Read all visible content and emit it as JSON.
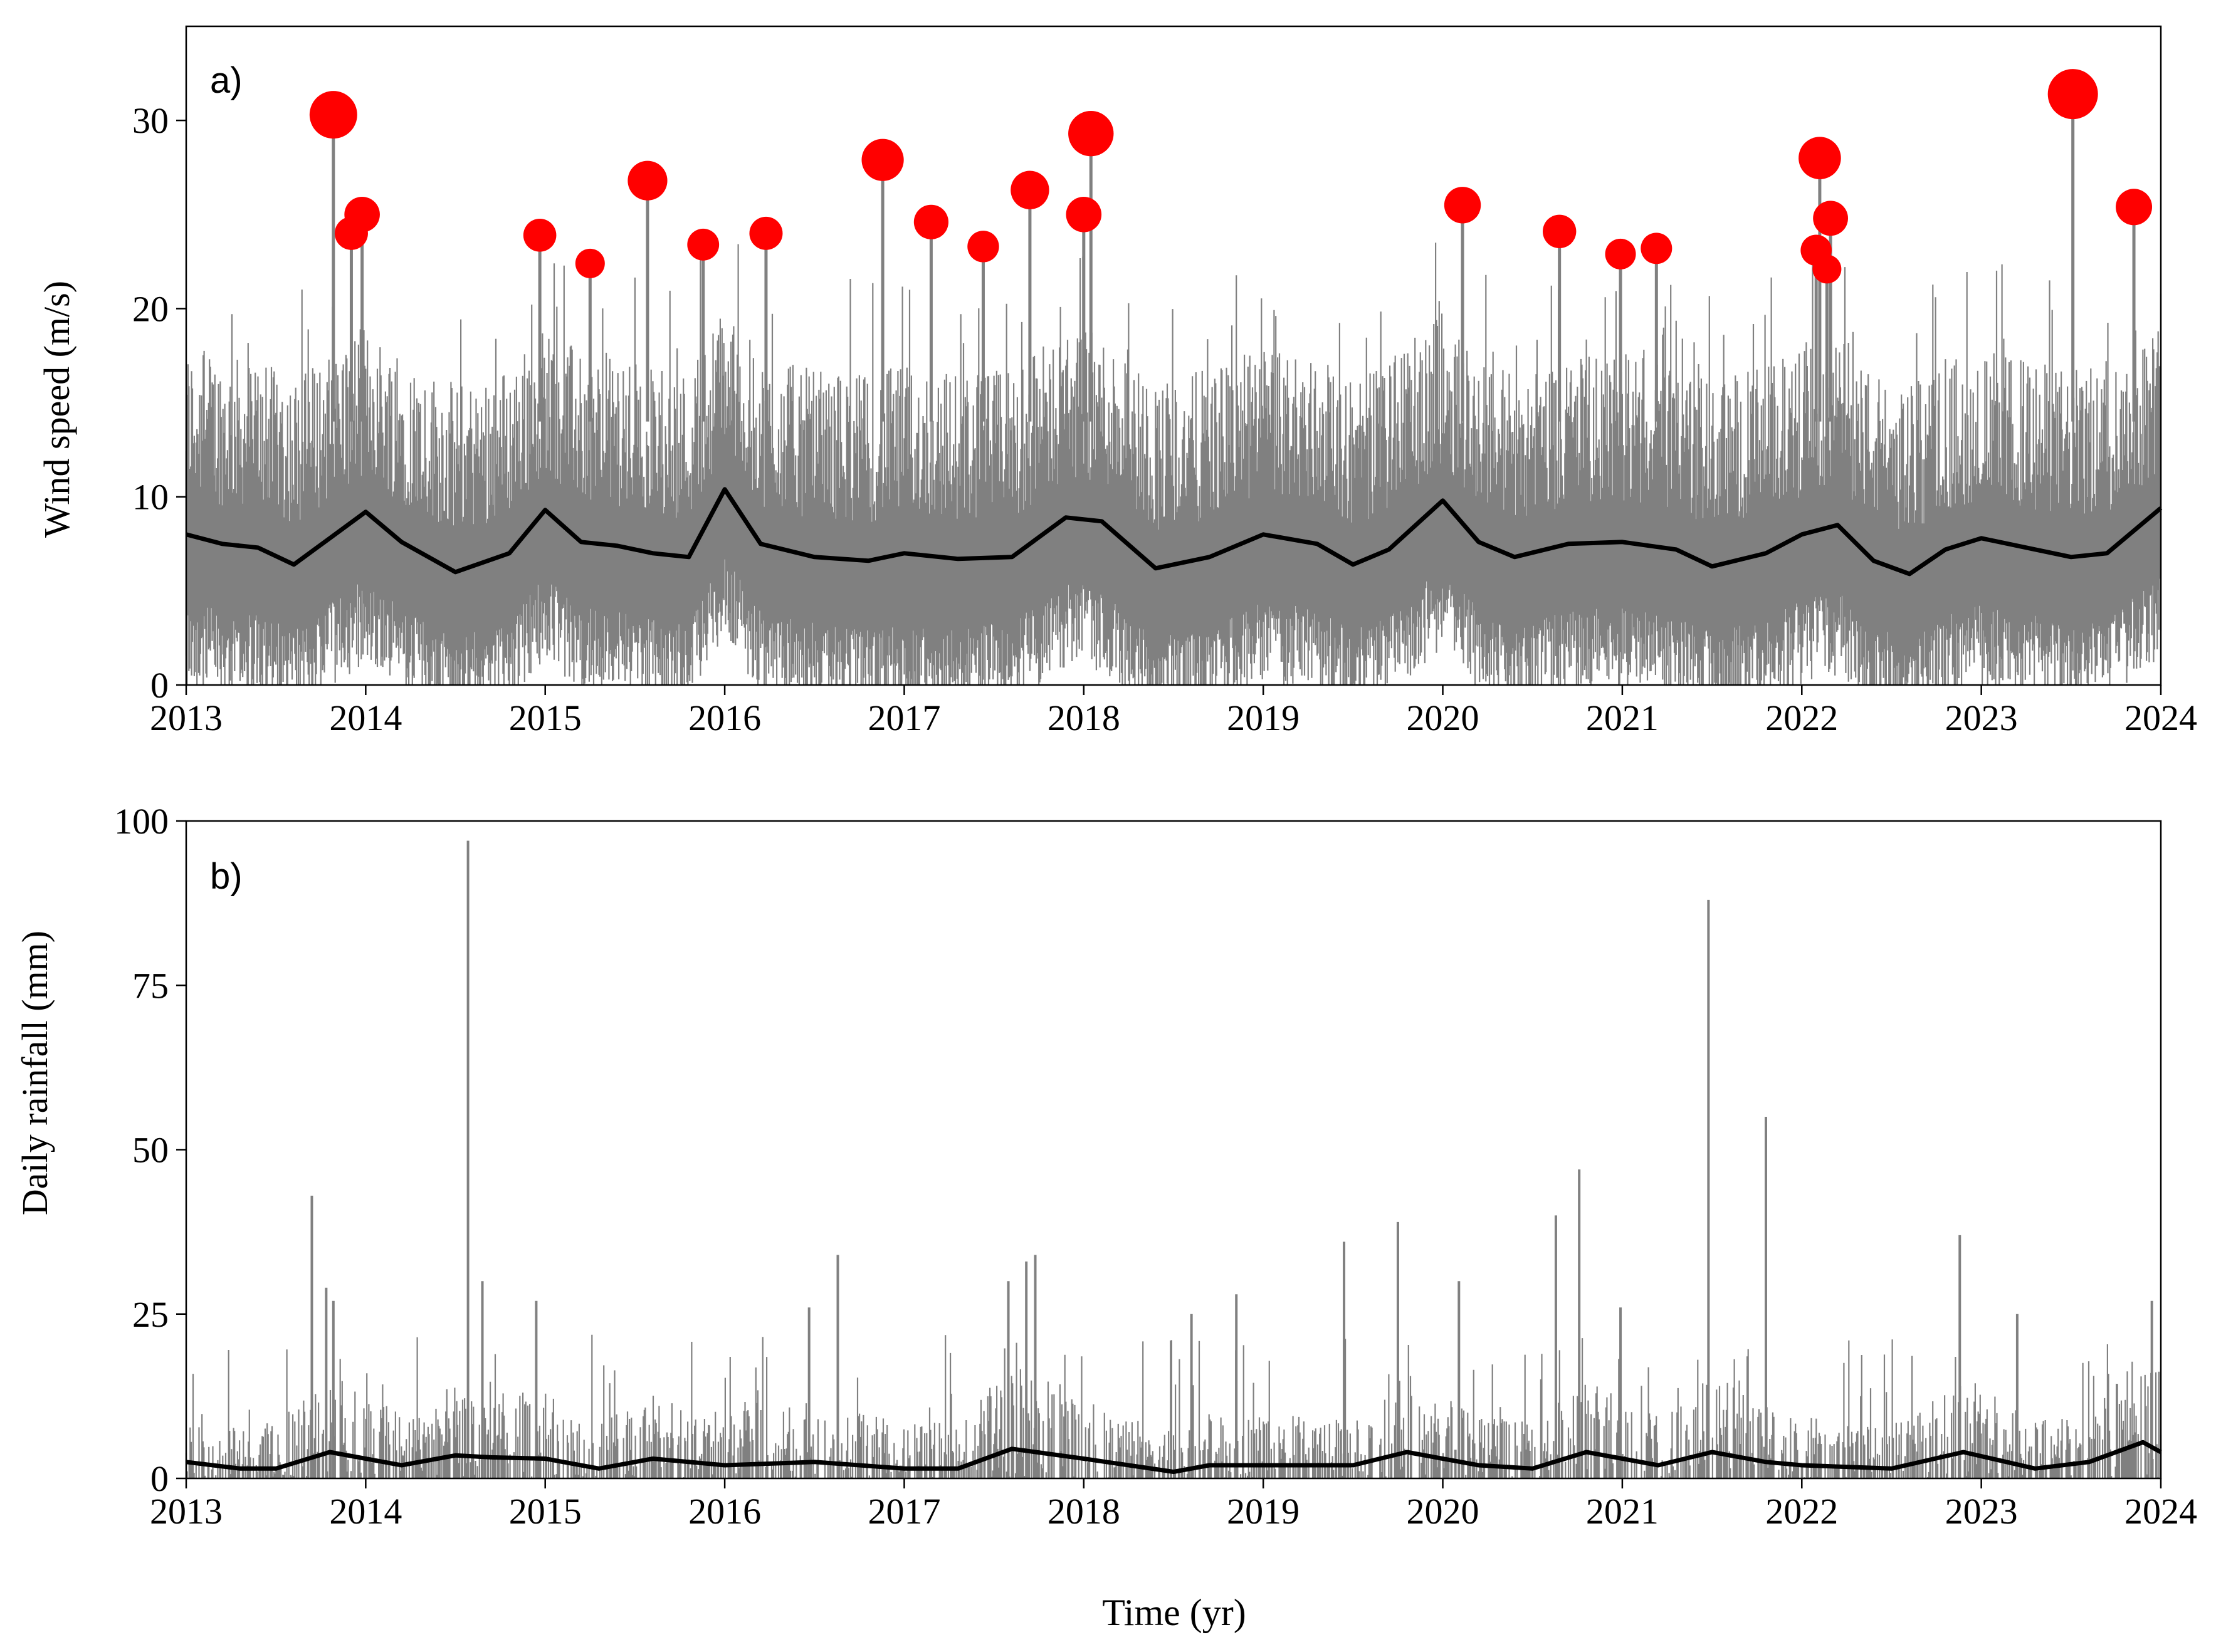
{
  "colors": {
    "raw_series": "#808080",
    "smoothed_series": "#000000",
    "extremes": "#ff0000",
    "axis": "#000000"
  },
  "figure": {
    "xlabel": "Time (yr)"
  },
  "chart_data": [
    {
      "type": "line",
      "panel_label": "a)",
      "title": "",
      "xlabel": "",
      "ylabel": "Wind speed (m/s)",
      "xlim": [
        2013,
        2024
      ],
      "ylim": [
        0,
        35
      ],
      "x_ticks": [
        2013,
        2014,
        2015,
        2016,
        2017,
        2018,
        2019,
        2020,
        2021,
        2022,
        2023,
        2024
      ],
      "x_tick_labels": [
        "2013",
        "2014",
        "2015",
        "2016",
        "2017",
        "2018",
        "2019",
        "2020",
        "2021",
        "2022",
        "2023",
        "2024"
      ],
      "y_ticks": [
        0,
        10,
        20,
        30
      ],
      "y_tick_labels": [
        "0",
        "10",
        "20",
        "30"
      ],
      "grid": false,
      "legend": "none",
      "series": [
        {
          "role": "daily_wind_speed",
          "style": "grey vertical traces, daily values roughly 0.5 to 22 m/s, season-modulated",
          "typical_range": [
            0.5,
            21
          ]
        },
        {
          "role": "running_mean",
          "x": [
            2013.0,
            2013.2,
            2013.4,
            2013.6,
            2013.8,
            2014.0,
            2014.2,
            2014.5,
            2014.8,
            2015.0,
            2015.2,
            2015.4,
            2015.6,
            2015.8,
            2016.0,
            2016.2,
            2016.5,
            2016.8,
            2017.0,
            2017.3,
            2017.6,
            2017.9,
            2018.1,
            2018.4,
            2018.7,
            2019.0,
            2019.3,
            2019.5,
            2019.7,
            2020.0,
            2020.2,
            2020.4,
            2020.7,
            2021.0,
            2021.3,
            2021.5,
            2021.8,
            2022.0,
            2022.2,
            2022.4,
            2022.6,
            2022.8,
            2023.0,
            2023.3,
            2023.5,
            2023.7,
            2024.0
          ],
          "y": [
            8.0,
            7.5,
            7.3,
            6.4,
            7.8,
            9.2,
            7.6,
            6.0,
            7.0,
            9.3,
            7.6,
            7.4,
            7.0,
            6.8,
            10.4,
            7.5,
            6.8,
            6.6,
            7.0,
            6.7,
            6.8,
            8.9,
            8.7,
            6.2,
            6.8,
            8.0,
            7.5,
            6.4,
            7.2,
            9.8,
            7.6,
            6.8,
            7.5,
            7.6,
            7.2,
            6.3,
            7.0,
            8.0,
            8.5,
            6.6,
            5.9,
            7.2,
            7.8,
            7.2,
            6.8,
            7.0,
            9.4
          ]
        },
        {
          "role": "extreme_events",
          "x": [
            2013.82,
            2013.92,
            2013.98,
            2014.97,
            2015.25,
            2015.57,
            2015.88,
            2016.23,
            2016.88,
            2017.15,
            2017.44,
            2017.7,
            2018.0,
            2018.04,
            2020.11,
            2020.65,
            2020.99,
            2021.19,
            2022.08,
            2022.1,
            2022.14,
            2022.16,
            2023.51,
            2023.85
          ],
          "y": [
            30.3,
            24.0,
            25.0,
            23.9,
            22.4,
            26.8,
            23.4,
            24.0,
            27.9,
            24.6,
            23.3,
            26.3,
            25.0,
            29.3,
            25.5,
            24.1,
            22.9,
            23.2,
            23.1,
            28.0,
            22.1,
            24.8,
            31.4,
            25.4
          ]
        }
      ]
    },
    {
      "type": "line",
      "panel_label": "b)",
      "title": "",
      "xlabel": "Time (yr)",
      "ylabel": "Daily rainfall (mm)",
      "xlim": [
        2013,
        2024
      ],
      "ylim": [
        0,
        100
      ],
      "x_ticks": [
        2013,
        2014,
        2015,
        2016,
        2017,
        2018,
        2019,
        2020,
        2021,
        2022,
        2023,
        2024
      ],
      "x_tick_labels": [
        "2013",
        "2014",
        "2015",
        "2016",
        "2017",
        "2018",
        "2019",
        "2020",
        "2021",
        "2022",
        "2023",
        "2024"
      ],
      "y_ticks": [
        0,
        25,
        50,
        75,
        100
      ],
      "y_tick_labels": [
        "0",
        "25",
        "50",
        "75",
        "100"
      ],
      "grid": false,
      "legend": "none",
      "series": [
        {
          "role": "daily_rainfall_peaks",
          "x": [
            2013.7,
            2013.78,
            2013.82,
            2014.57,
            2014.65,
            2014.95,
            2016.47,
            2016.63,
            2017.58,
            2017.68,
            2017.73,
            2018.6,
            2018.85,
            2019.45,
            2019.75,
            2020.09,
            2020.63,
            2020.76,
            2020.99,
            2021.48,
            2021.8,
            2022.88,
            2023.2,
            2023.95
          ],
          "y": [
            43,
            29,
            27,
            97,
            30,
            27,
            26,
            34,
            30,
            33,
            34,
            25,
            28,
            36,
            39,
            30,
            40,
            47,
            26,
            88,
            55,
            37,
            25,
            27
          ]
        },
        {
          "role": "running_mean",
          "x": [
            2013.0,
            2013.3,
            2013.5,
            2013.8,
            2014.2,
            2014.5,
            2014.7,
            2015.0,
            2015.3,
            2015.6,
            2016.0,
            2016.5,
            2017.0,
            2017.3,
            2017.6,
            2018.0,
            2018.5,
            2018.7,
            2019.0,
            2019.5,
            2019.8,
            2020.2,
            2020.5,
            2020.8,
            2021.2,
            2021.5,
            2021.8,
            2022.0,
            2022.5,
            2022.9,
            2023.3,
            2023.6,
            2023.9,
            2024.0
          ],
          "y": [
            2.5,
            1.5,
            1.5,
            4.0,
            2.0,
            3.5,
            3.2,
            3.0,
            1.5,
            3.0,
            2.0,
            2.5,
            1.5,
            1.5,
            4.5,
            3.0,
            1.0,
            2.0,
            2.0,
            2.0,
            4.0,
            2.0,
            1.5,
            4.0,
            2.0,
            4.0,
            2.5,
            2.0,
            1.5,
            4.0,
            1.5,
            2.5,
            5.5,
            4.0
          ]
        }
      ]
    }
  ]
}
